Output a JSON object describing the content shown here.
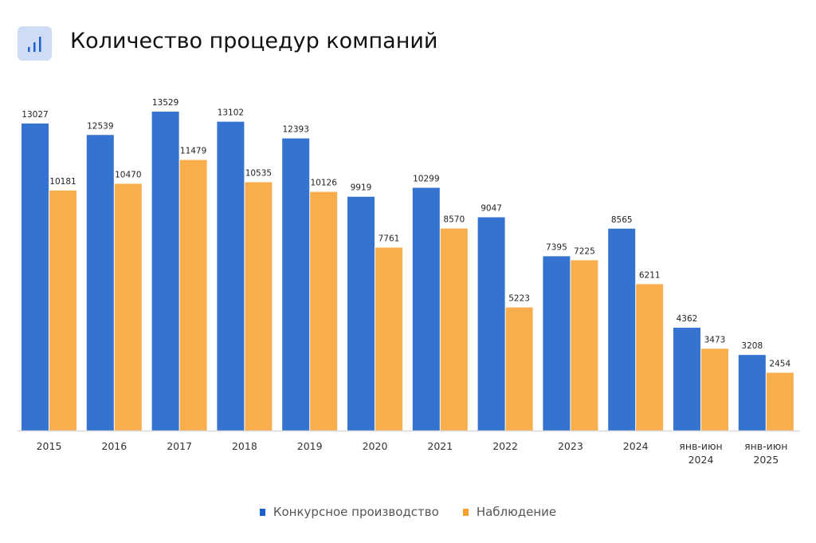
{
  "header": {
    "title": "Количество процедур компаний",
    "icon": "bar-chart-icon"
  },
  "chart_data": {
    "type": "bar",
    "title": "Количество процедур компаний",
    "categories": [
      "2015",
      "2016",
      "2017",
      "2018",
      "2019",
      "2020",
      "2021",
      "2022",
      "2023",
      "2024",
      "янв-июн 2024",
      "янв-июн 2025"
    ],
    "series": [
      {
        "name": "Конкурсное производство",
        "color": "#3473d0",
        "values": [
          13027,
          12539,
          13529,
          13102,
          12393,
          9919,
          10299,
          9047,
          7395,
          8565,
          4362,
          3208
        ]
      },
      {
        "name": "Наблюдение",
        "color": "#f8ae4c",
        "values": [
          10181,
          10470,
          11479,
          10535,
          10126,
          7761,
          8570,
          5223,
          7225,
          6211,
          3473,
          2454
        ]
      }
    ],
    "ylim": [
      0,
      13529
    ],
    "grid": false,
    "legend": "bottom-center",
    "xlabel": "",
    "ylabel": ""
  }
}
